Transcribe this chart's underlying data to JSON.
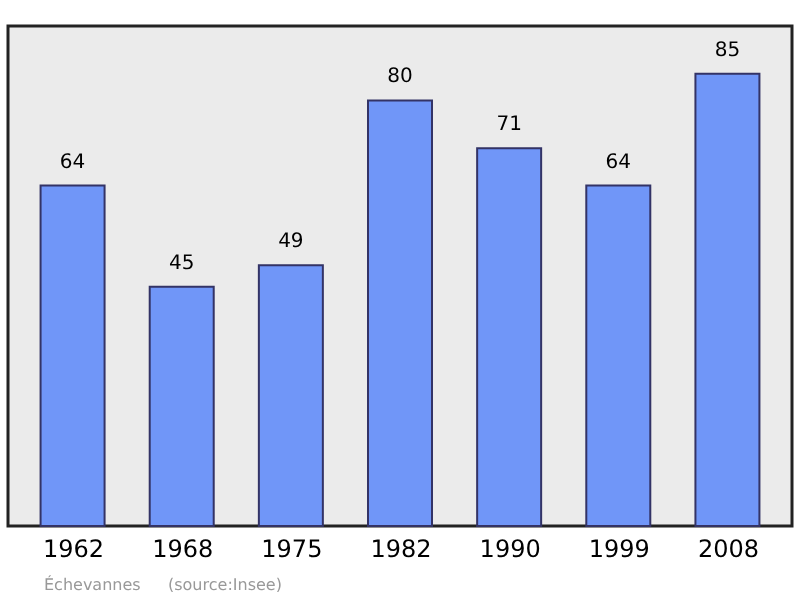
{
  "chart_data": {
    "type": "bar",
    "categories": [
      "1962",
      "1968",
      "1975",
      "1982",
      "1990",
      "1999",
      "2008"
    ],
    "values": [
      64,
      45,
      49,
      80,
      71,
      64,
      85
    ],
    "color": "#7096f8",
    "ylim": [
      0,
      94
    ],
    "data_labels": true,
    "tick_labels": "x",
    "annotations": [
      "Échevannes",
      "(source:Insee)"
    ]
  }
}
